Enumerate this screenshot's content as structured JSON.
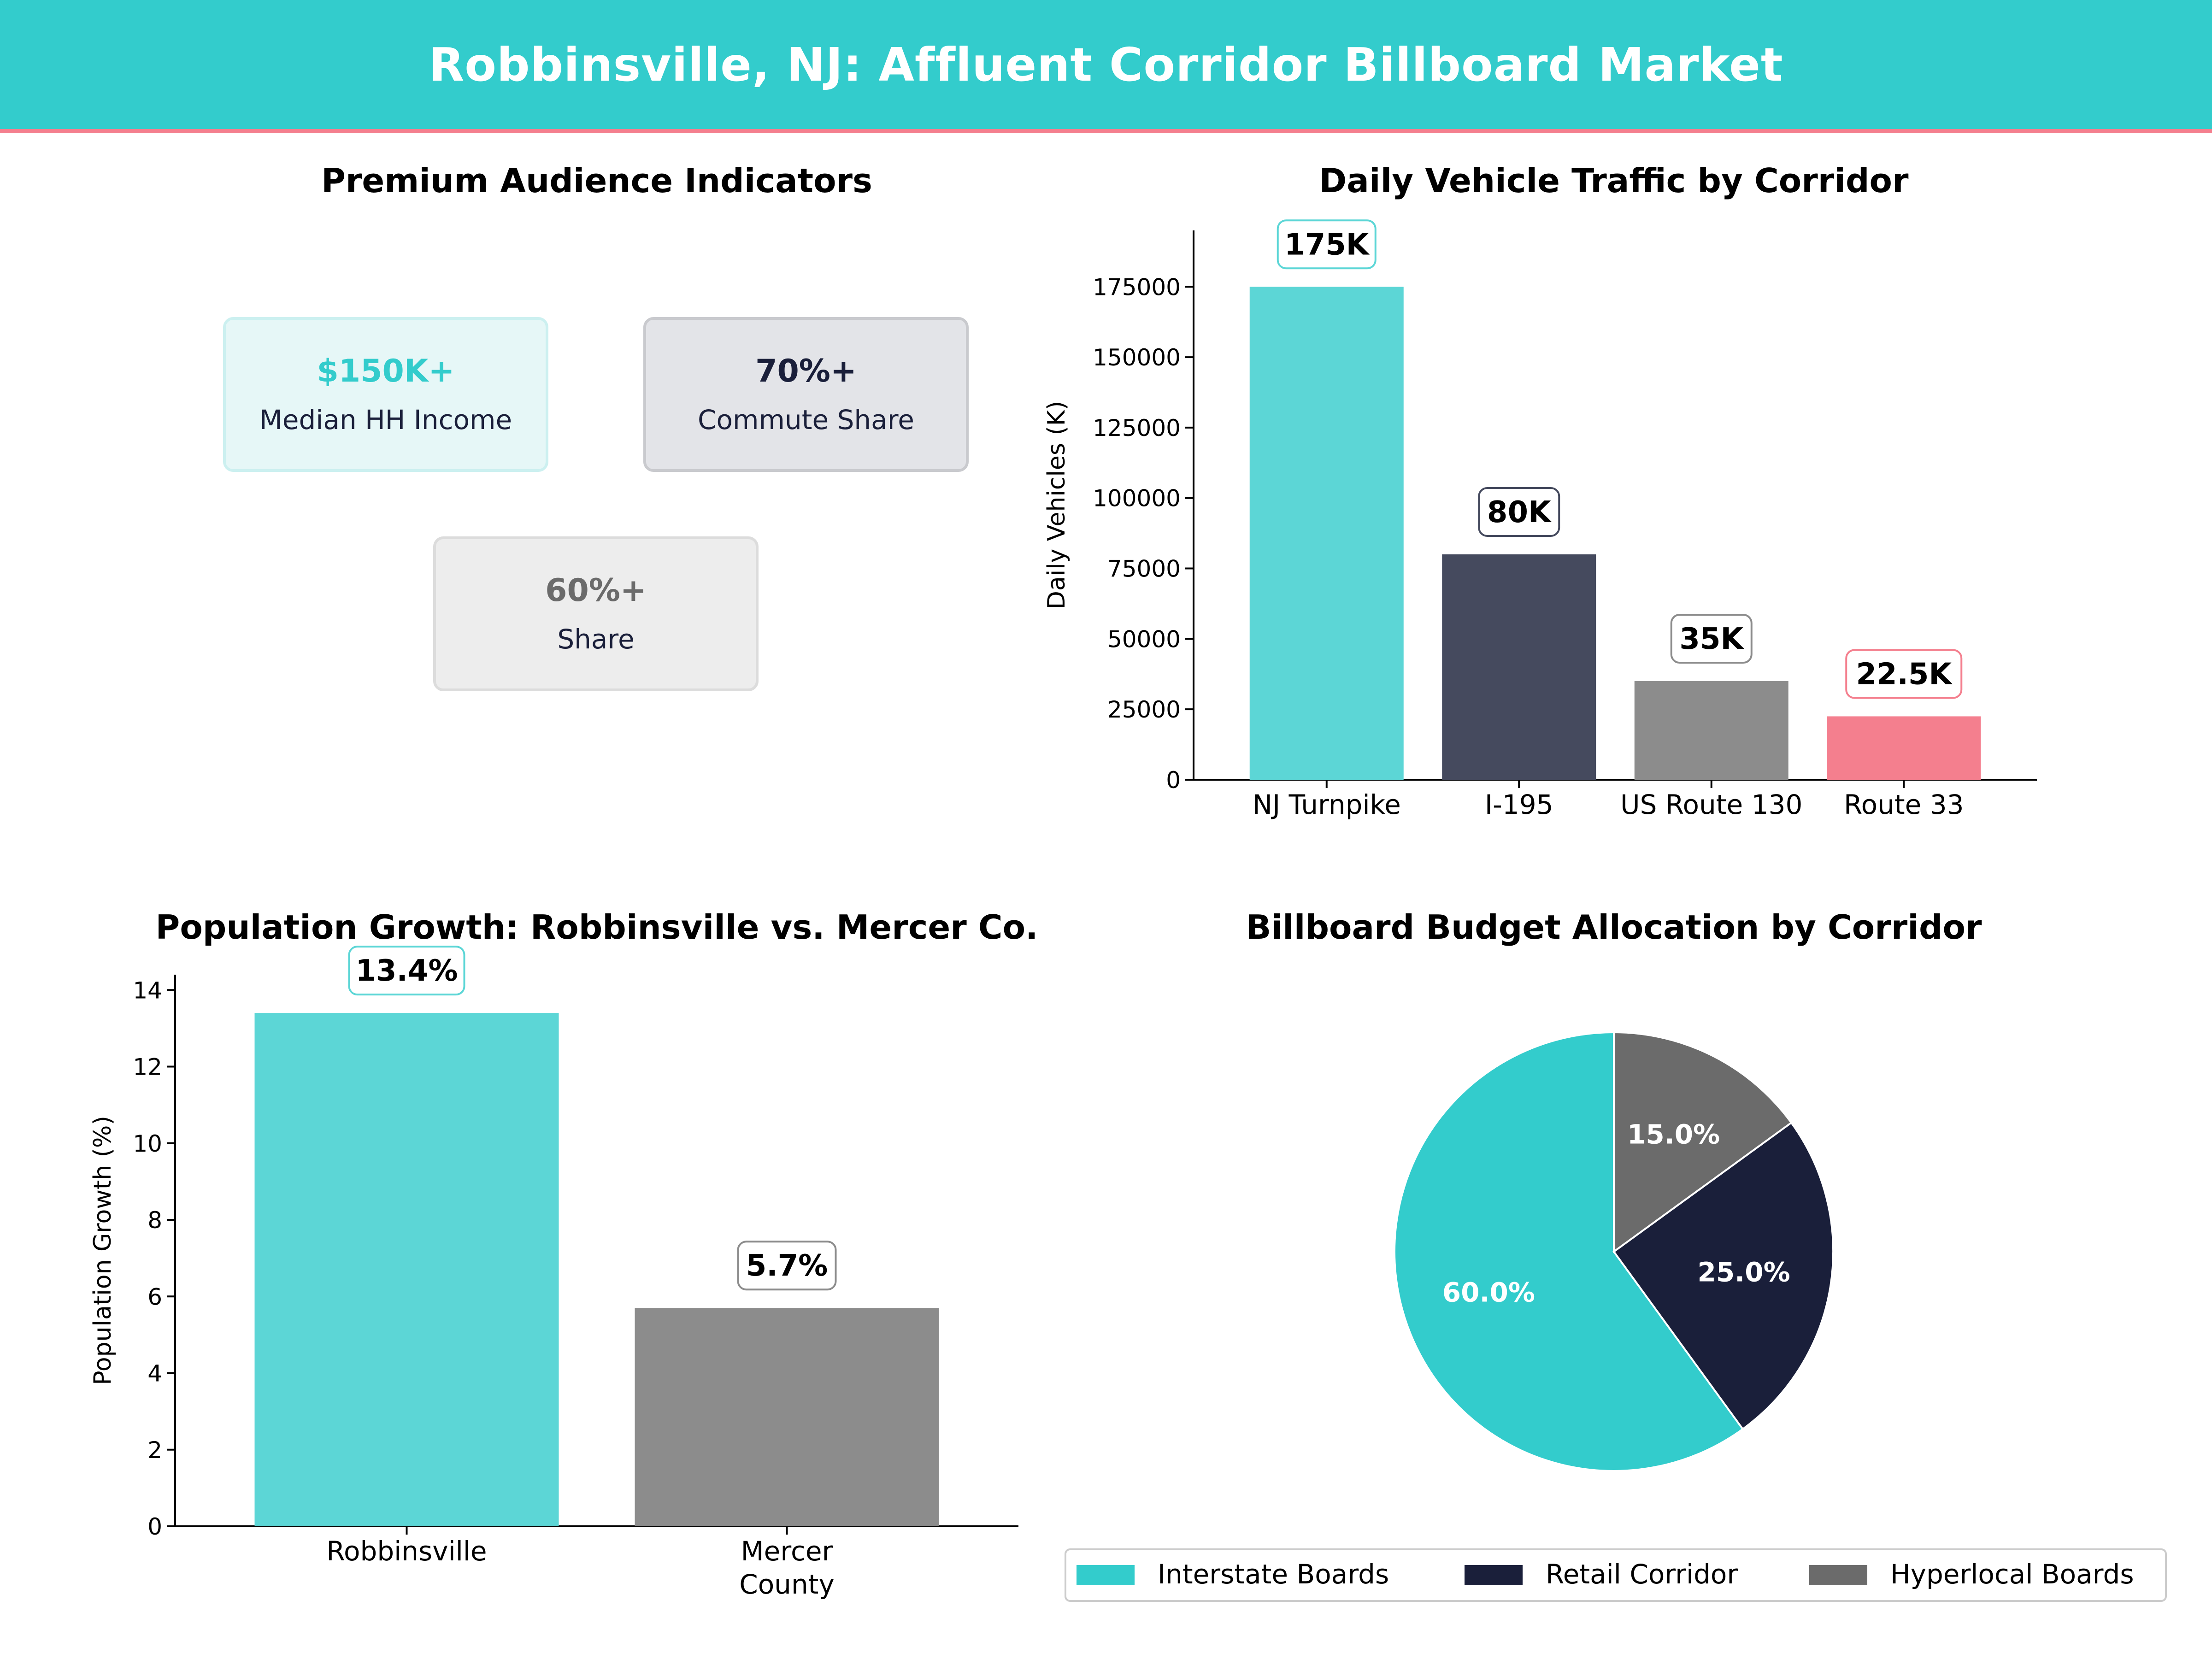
{
  "header": {
    "title": "Robbinsville, NJ: Affluent Corridor Billboard Market"
  },
  "panels": {
    "kpi_title": "Premium Audience Indicators",
    "traffic_title": "Daily Vehicle Traffic by Corridor",
    "growth_title": "Population Growth: Robbinsville vs. Mercer Co.",
    "budget_title": "Billboard Budget Allocation by Corridor"
  },
  "kpis": [
    {
      "value": "$150K+",
      "label": "Median HH Income",
      "value_color": "#33CCCC",
      "bg": "#E6F7F7",
      "border": "#CCF0F0"
    },
    {
      "value": "70%+",
      "label": "Commute Share",
      "value_color": "#1A1F3A",
      "bg": "#E3E4E8",
      "border": "#C9CACE"
    },
    {
      "value": "60%+",
      "label": "Share",
      "value_color": "#6B6B6B",
      "bg": "#EDEDED",
      "border": "#DCDCDC"
    }
  ],
  "chart_data": [
    {
      "type": "bar",
      "title": "Daily Vehicle Traffic by Corridor",
      "categories": [
        "NJ Turnpike",
        "I-195",
        "US Route 130",
        "Route 33"
      ],
      "values": [
        175000,
        80000,
        35000,
        22500
      ],
      "data_labels": [
        "175K",
        "80K",
        "35K",
        "22.5K"
      ],
      "colors": [
        "#5CD6D6",
        "#454A5E",
        "#8C8C8C",
        "#F47F8E"
      ],
      "label_border_colors": [
        "#5CD6D6",
        "#454A5E",
        "#8C8C8C",
        "#F47F8E"
      ],
      "xlabel": "",
      "ylabel": "Daily Vehicles (K)",
      "ylim": [
        0,
        195000
      ],
      "yticks": [
        0,
        25000,
        50000,
        75000,
        100000,
        125000,
        150000,
        175000
      ],
      "grid": false
    },
    {
      "type": "bar",
      "title": "Population Growth: Robbinsville vs. Mercer Co.",
      "categories": [
        "Robbinsville",
        "Mercer County"
      ],
      "category_lines": [
        [
          "Robbinsville"
        ],
        [
          "Mercer",
          "County"
        ]
      ],
      "values": [
        13.4,
        5.7
      ],
      "data_labels": [
        "13.4%",
        "5.7%"
      ],
      "colors": [
        "#5CD6D6",
        "#8C8C8C"
      ],
      "label_border_colors": [
        "#5CD6D6",
        "#8C8C8C"
      ],
      "xlabel": "",
      "ylabel": "Population Growth (%)",
      "ylim": [
        0,
        14.4
      ],
      "yticks": [
        0,
        2,
        4,
        6,
        8,
        10,
        12,
        14
      ],
      "grid": false
    },
    {
      "type": "pie",
      "title": "Billboard Budget Allocation by Corridor",
      "labels": [
        "Interstate Boards",
        "Retail Corridor",
        "Hyperlocal Boards"
      ],
      "values": [
        60,
        25,
        15
      ],
      "data_labels": [
        "60.0%",
        "25.0%",
        "15.0%"
      ],
      "colors": [
        "#33CCCC",
        "#1A1F3A",
        "#6B6B6B"
      ],
      "legend_position": "bottom"
    }
  ]
}
